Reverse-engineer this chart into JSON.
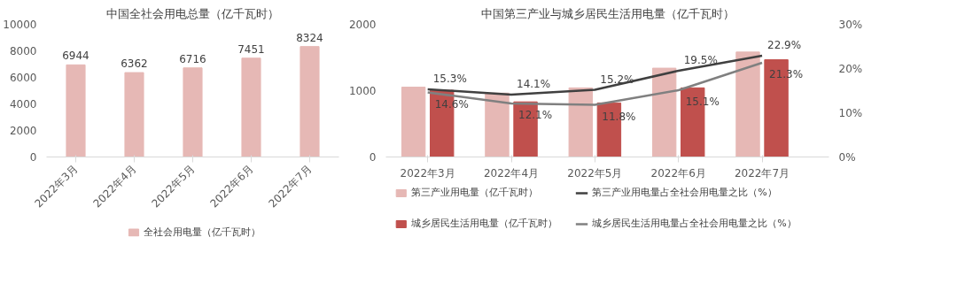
{
  "chart_data": [
    {
      "type": "bar",
      "title": "中国全社会用电总量（亿千瓦时）",
      "categories": [
        "2022年3月",
        "2022年4月",
        "2022年5月",
        "2022年6月",
        "2022年7月"
      ],
      "series": [
        {
          "name": "全社会用电量（亿千瓦时）",
          "color": "#e6b8b5",
          "values": [
            6944,
            6362,
            6716,
            7451,
            8324
          ]
        }
      ],
      "ylim": [
        0,
        10000
      ],
      "yticks": [
        0,
        2000,
        4000,
        6000,
        8000,
        10000
      ],
      "data_labels": true,
      "legend": "bottom"
    },
    {
      "type": "bar",
      "title": "中国第三产业与城乡居民生活用电量（亿千瓦时）",
      "categories": [
        "2022年3月",
        "2022年4月",
        "2022年5月",
        "2022年6月",
        "2022年7月"
      ],
      "series": [
        {
          "name": "第三产业用电量（亿千瓦时）",
          "color": "#e6b8b5",
          "values": [
            1053,
            963,
            1042,
            1339,
            1582
          ]
        },
        {
          "name": "城乡居民生活用电量（亿千瓦时）",
          "color": "#c0504d",
          "values": [
            1005,
            831,
            815,
            1042,
            1466
          ]
        },
        {
          "name": "第三产业用电量占全社会用电量之比（%）",
          "type": "line",
          "axis": "y2",
          "color": "#404040",
          "values": [
            15.3,
            14.1,
            15.2,
            19.5,
            22.9
          ],
          "value_labels": [
            "15.3%",
            "14.1%",
            "15.2%",
            "19.5%",
            "22.9%"
          ]
        },
        {
          "name": "城乡居民生活用电量占全社会用电量之比（%）",
          "type": "line",
          "axis": "y2",
          "color": "#808080",
          "values": [
            14.6,
            12.1,
            11.8,
            15.1,
            21.3
          ],
          "value_labels": [
            "14.6%",
            "12.1%",
            "11.8%",
            "15.1%",
            "21.3%"
          ]
        }
      ],
      "ylim": [
        0,
        2000
      ],
      "yticks": [
        0,
        1000,
        2000
      ],
      "y2lim": [
        0,
        30
      ],
      "y2ticks": [
        {
          "value": 0,
          "label": "0%"
        },
        {
          "value": 10,
          "label": "10%"
        },
        {
          "value": 20,
          "label": "20%"
        },
        {
          "value": 30,
          "label": "30%"
        }
      ],
      "legend": "bottom"
    }
  ]
}
